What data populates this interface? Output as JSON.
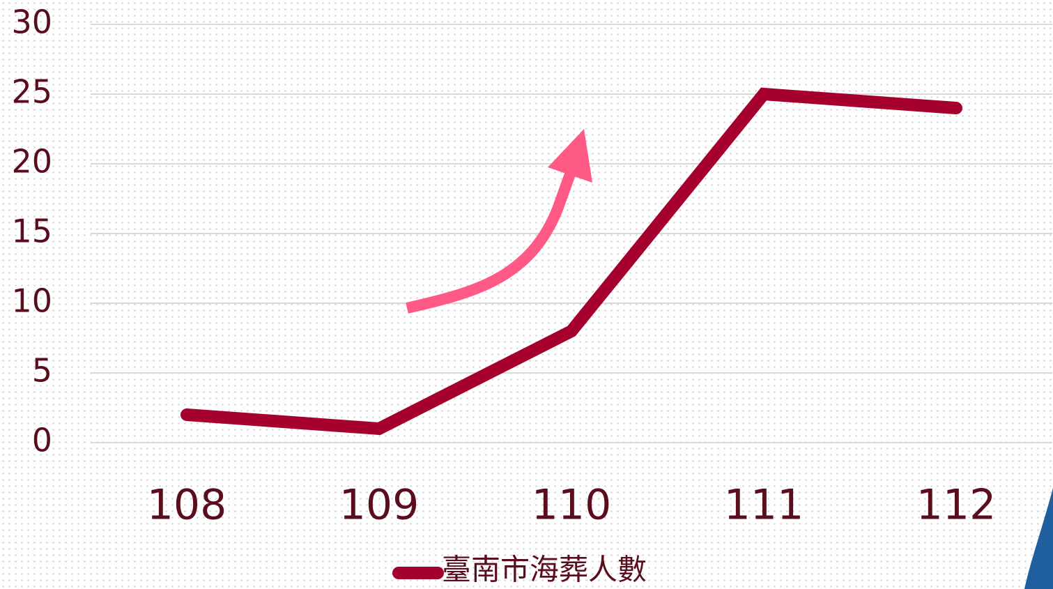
{
  "chart_data": {
    "type": "line",
    "categories": [
      "108",
      "109",
      "110",
      "111",
      "112"
    ],
    "series": [
      {
        "name": "臺南市海葬人數",
        "color": "#a6002f",
        "values": [
          2,
          1,
          8,
          25,
          24
        ]
      }
    ],
    "ylim": [
      0,
      30
    ],
    "yticks": [
      0,
      5,
      10,
      15,
      20,
      25,
      30
    ],
    "grid": true,
    "legend": "bottom"
  }
}
